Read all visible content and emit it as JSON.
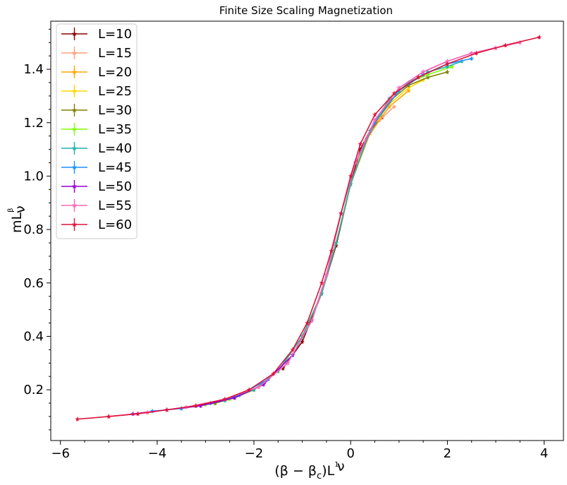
{
  "chart_data": {
    "type": "line",
    "title": "Finite Size Scaling Magnetization",
    "xlabel": {
      "main": "(β − β",
      "sub": "c",
      "after": ")L",
      "sup_num": "1",
      "sup_den": "ν"
    },
    "ylabel": {
      "main": "mL",
      "sup_num": "β",
      "sup_den": "ν"
    },
    "xlim": [
      -6.2,
      4.4
    ],
    "ylim": [
      0.01,
      1.58
    ],
    "xticks": [
      -6,
      -4,
      -2,
      0,
      2,
      4
    ],
    "xtick_labels": [
      "−6",
      "−4",
      "−2",
      "0",
      "2",
      "4"
    ],
    "yticks": [
      0.2,
      0.4,
      0.6,
      0.8,
      1.0,
      1.2,
      1.4
    ],
    "ytick_labels": [
      "0.2",
      "0.4",
      "0.6",
      "0.8",
      "1.0",
      "1.2",
      "1.4"
    ],
    "grid": false,
    "legend_position": "top-left",
    "marker": "star",
    "series": [
      {
        "name": "L=10",
        "color": "#8b0000",
        "x": [
          -1.4,
          -1.0,
          -0.6,
          -0.3,
          0.0,
          0.2,
          0.4,
          0.65
        ],
        "y": [
          0.28,
          0.38,
          0.56,
          0.74,
          0.97,
          1.1,
          1.17,
          1.22
        ]
      },
      {
        "name": "L=15",
        "color": "#ffa07a",
        "x": [
          -2.0,
          -1.5,
          -1.0,
          -0.6,
          -0.3,
          0.0,
          0.3,
          0.6,
          0.9
        ],
        "y": [
          0.2,
          0.27,
          0.4,
          0.56,
          0.75,
          0.97,
          1.13,
          1.21,
          1.26
        ]
      },
      {
        "name": "L=20",
        "color": "#ffa500",
        "x": [
          -2.4,
          -2.0,
          -1.5,
          -1.0,
          -0.6,
          -0.3,
          0.0,
          0.4,
          0.8,
          1.2
        ],
        "y": [
          0.17,
          0.2,
          0.27,
          0.4,
          0.56,
          0.75,
          0.97,
          1.16,
          1.26,
          1.32
        ]
      },
      {
        "name": "L=25",
        "color": "#ffd700",
        "x": [
          -2.8,
          -2.4,
          -2.0,
          -1.5,
          -1.0,
          -0.6,
          -0.3,
          0.0,
          0.4,
          0.8,
          1.2,
          1.5
        ],
        "y": [
          0.15,
          0.17,
          0.2,
          0.27,
          0.4,
          0.56,
          0.75,
          0.97,
          1.17,
          1.27,
          1.33,
          1.36
        ]
      },
      {
        "name": "L=30",
        "color": "#808000",
        "x": [
          -3.2,
          -2.8,
          -2.4,
          -2.0,
          -1.5,
          -1.0,
          -0.6,
          -0.3,
          0.0,
          0.4,
          0.8,
          1.2,
          1.6,
          2.0
        ],
        "y": [
          0.14,
          0.15,
          0.17,
          0.2,
          0.27,
          0.4,
          0.56,
          0.75,
          0.97,
          1.17,
          1.28,
          1.34,
          1.37,
          1.39
        ]
      },
      {
        "name": "L=35",
        "color": "#7fff00",
        "x": [
          -3.5,
          -3.0,
          -2.5,
          -2.0,
          -1.5,
          -1.0,
          -0.6,
          -0.3,
          0.0,
          0.4,
          0.8,
          1.2,
          1.6,
          2.1
        ],
        "y": [
          0.13,
          0.145,
          0.165,
          0.2,
          0.27,
          0.4,
          0.56,
          0.75,
          0.97,
          1.17,
          1.29,
          1.35,
          1.38,
          1.41
        ]
      },
      {
        "name": "L=40",
        "color": "#20b2aa",
        "x": [
          -3.8,
          -3.2,
          -2.6,
          -2.0,
          -1.5,
          -1.0,
          -0.6,
          -0.3,
          0.0,
          0.4,
          0.8,
          1.2,
          1.6,
          2.0,
          2.3
        ],
        "y": [
          0.125,
          0.14,
          0.16,
          0.2,
          0.27,
          0.4,
          0.56,
          0.75,
          0.97,
          1.17,
          1.29,
          1.35,
          1.39,
          1.41,
          1.43
        ]
      },
      {
        "name": "L=45",
        "color": "#1e90ff",
        "x": [
          -4.1,
          -3.5,
          -2.9,
          -2.3,
          -1.7,
          -1.2,
          -0.8,
          -0.5,
          -0.2,
          0.1,
          0.5,
          1.0,
          1.5,
          2.0,
          2.5
        ],
        "y": [
          0.12,
          0.13,
          0.15,
          0.18,
          0.24,
          0.33,
          0.46,
          0.63,
          0.86,
          1.05,
          1.2,
          1.32,
          1.38,
          1.42,
          1.44
        ]
      },
      {
        "name": "L=50",
        "color": "#9400d3",
        "x": [
          -4.5,
          -3.8,
          -3.1,
          -2.4,
          -1.8,
          -1.2,
          -0.8,
          -0.5,
          -0.2,
          0.1,
          0.5,
          1.0,
          1.5,
          2.0,
          2.5,
          3.0
        ],
        "y": [
          0.11,
          0.125,
          0.14,
          0.17,
          0.22,
          0.33,
          0.46,
          0.63,
          0.86,
          1.05,
          1.21,
          1.33,
          1.39,
          1.43,
          1.46,
          1.48
        ]
      },
      {
        "name": "L=55",
        "color": "#ff69b4",
        "x": [
          -5.0,
          -4.2,
          -3.4,
          -2.6,
          -1.9,
          -1.3,
          -0.8,
          -0.5,
          -0.2,
          0.1,
          0.5,
          1.0,
          1.5,
          2.0,
          2.5,
          3.0,
          3.5
        ],
        "y": [
          0.1,
          0.115,
          0.135,
          0.165,
          0.21,
          0.3,
          0.46,
          0.63,
          0.86,
          1.05,
          1.21,
          1.33,
          1.39,
          1.43,
          1.46,
          1.48,
          1.5
        ]
      },
      {
        "name": "L=60",
        "color": "#dc143c",
        "x": [
          -5.65,
          -5.0,
          -4.4,
          -3.8,
          -3.2,
          -2.6,
          -2.1,
          -1.6,
          -1.2,
          -0.9,
          -0.6,
          -0.4,
          -0.2,
          0.0,
          0.2,
          0.5,
          0.9,
          1.4,
          2.0,
          2.6,
          3.2,
          3.9
        ],
        "y": [
          0.09,
          0.1,
          0.11,
          0.125,
          0.14,
          0.165,
          0.2,
          0.26,
          0.35,
          0.45,
          0.6,
          0.72,
          0.86,
          1.0,
          1.12,
          1.23,
          1.31,
          1.37,
          1.42,
          1.46,
          1.49,
          1.52
        ]
      }
    ]
  }
}
